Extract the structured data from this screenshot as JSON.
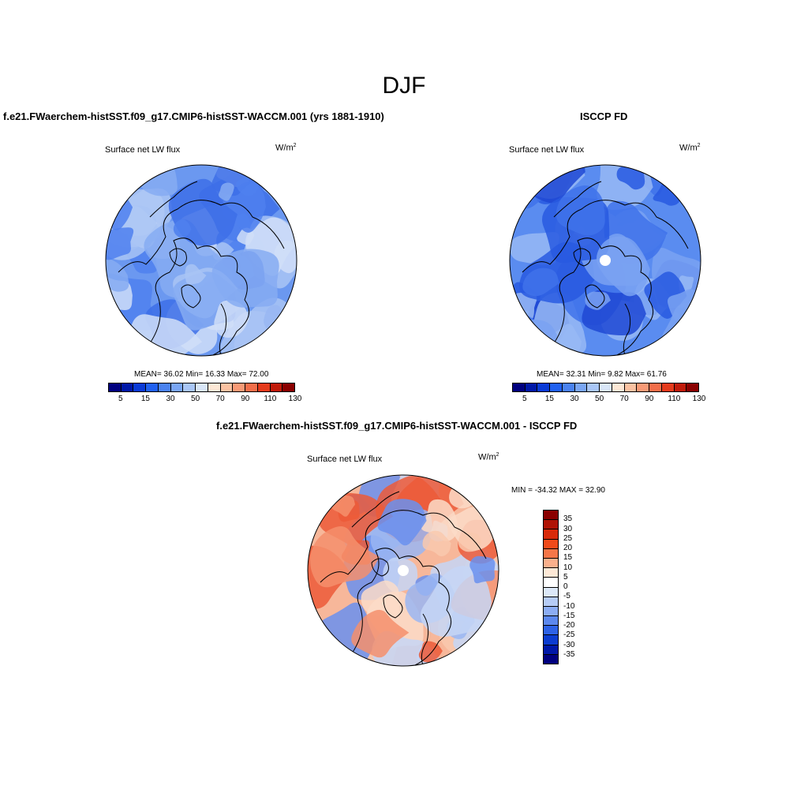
{
  "page": {
    "title": "DJF"
  },
  "panels": {
    "model": {
      "title": "f.e21.FWaerchem-histSST.f09_g17.CMIP6-histSST-WACCM.001 (yrs 1881-1910)",
      "variable": "Surface net LW flux",
      "units_base": "W/m",
      "units_exp": "2",
      "stats": "MEAN=  36.02  Min=  16.33  Max=  72.00"
    },
    "obs": {
      "title": "ISCCP FD",
      "variable": "Surface net LW flux",
      "units_base": "W/m",
      "units_exp": "2",
      "stats": "MEAN=  32.31  Min=   9.82  Max=  61.76"
    },
    "diff": {
      "title": "f.e21.FWaerchem-histSST.f09_g17.CMIP6-histSST-WACCM.001 - ISCCP FD",
      "variable": "Surface net LW flux",
      "units_base": "W/m",
      "units_exp": "2",
      "stats": "MIN = -34.32 MAX =  32.90"
    }
  },
  "colorbar_abs": {
    "colors": [
      "#00007f",
      "#0018a8",
      "#0a3ad6",
      "#2060f0",
      "#4a82f0",
      "#7aa6f4",
      "#a9c6f6",
      "#d9e6f8",
      "#fde8d6",
      "#fbc2a2",
      "#f89a76",
      "#f26e4a",
      "#e43a1c",
      "#c01a0a",
      "#8a0000"
    ],
    "tick_labels": [
      "5",
      "15",
      "30",
      "50",
      "70",
      "90",
      "110",
      "130"
    ]
  },
  "colorbar_diff": {
    "colors": [
      "#8a0000",
      "#b01406",
      "#d82a0a",
      "#f04a1a",
      "#f57648",
      "#fab08c",
      "#fde8d6",
      "#dce8f8",
      "#b6ccf6",
      "#8cadf4",
      "#5c88ee",
      "#2e62e6",
      "#0c3cd0",
      "#0018a8",
      "#00007f"
    ],
    "labels": [
      "35",
      "30",
      "25",
      "20",
      "15",
      "10",
      "5",
      "0",
      "-5",
      "-10",
      "-15",
      "-20",
      "-25",
      "-30",
      "-35"
    ]
  },
  "map_colors": {
    "model": [
      "#6b98f0",
      "#4f80ee",
      "#86acf2",
      "#3d6fe8",
      "#a9c4f4",
      "#d0def8"
    ],
    "obs": [
      "#5a8cf0",
      "#3f72ea",
      "#2859e0",
      "#7aa2f2",
      "#1e48d4",
      "#98b8f4"
    ],
    "diff": [
      "#f7b79a",
      "#f48f6c",
      "#fcdcc8",
      "#c6d6f6",
      "#9ab6f2",
      "#ec5a38",
      "#6a90ee",
      "#f9c9ae"
    ],
    "continent_line": "#000000",
    "pole_hole": "#ffffff"
  }
}
